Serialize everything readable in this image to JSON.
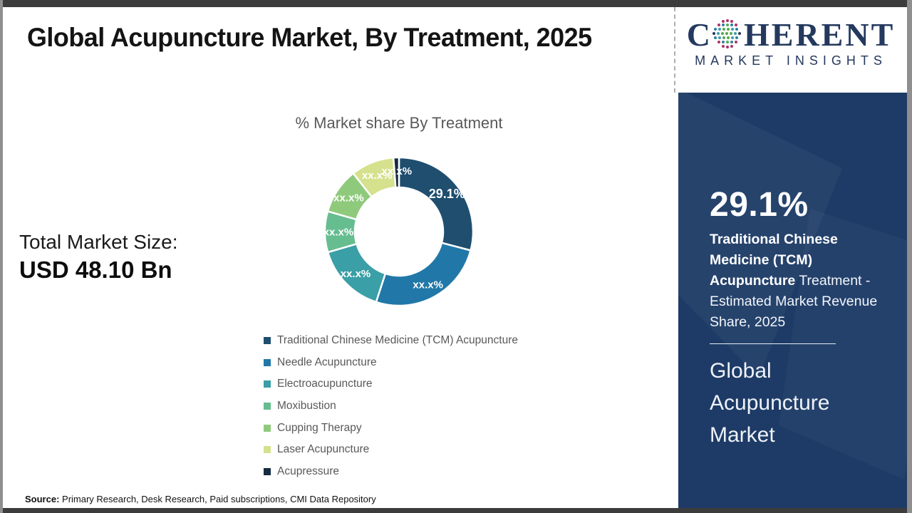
{
  "title": "Global Acupuncture Market, By Treatment, 2025",
  "logo": {
    "brand_c": "C",
    "brand_rest": "HERENT",
    "subtitle": "MARKET INSIGHTS",
    "brand_color": "#24395e"
  },
  "total_market": {
    "label": "Total Market Size:",
    "value": "USD 48.10 Bn"
  },
  "chart_data": {
    "type": "pie",
    "donut": true,
    "title": "% Market share By Treatment",
    "legend_position": "bottom-left",
    "gap_color": "#ffffff",
    "segments": [
      {
        "label": "Traditional Chinese Medicine (TCM) Acupuncture",
        "display": "29.1%",
        "share": 29.1,
        "color": "#1f4e6f"
      },
      {
        "label": "Needle Acupuncture",
        "display": "xx.x%",
        "share": 25.9,
        "color": "#2178a8"
      },
      {
        "label": "Electroacupuncture",
        "display": "xx.x%",
        "share": 15.5,
        "color": "#3a9fa6"
      },
      {
        "label": "Moxibustion",
        "display": "xx.x%",
        "share": 8.9,
        "color": "#66bd90"
      },
      {
        "label": "Cupping Therapy",
        "display": "xx.x%",
        "share": 10.0,
        "color": "#8fca7c"
      },
      {
        "label": "Laser Acupuncture",
        "display": "xx.x%",
        "share": 9.4,
        "color": "#d5e18d"
      },
      {
        "label": "Acupressure",
        "display": "xx.x%",
        "share": 1.2,
        "color": "#142b40"
      }
    ]
  },
  "sidebar": {
    "background": "#1d3b66",
    "stat_value": "29.1%",
    "stat_bold": "Traditional Chinese Medicine (TCM) Acupuncture",
    "stat_rest": " Treatment - Estimated Market Revenue Share, 2025",
    "panel_title": "Global Acupuncture Market"
  },
  "footer": {
    "source_label": "Source:",
    "source_text": " Primary Research, Desk Research, Paid subscriptions, CMI Data Repository"
  }
}
